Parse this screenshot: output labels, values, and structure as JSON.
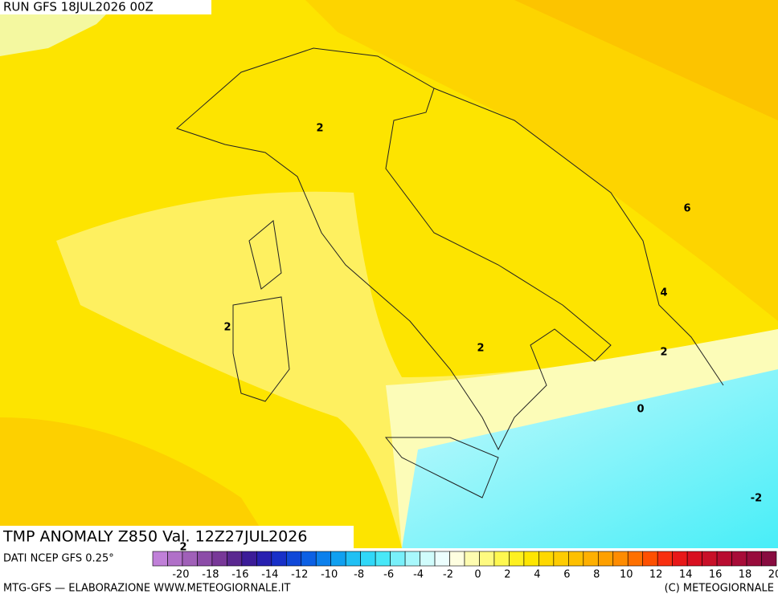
{
  "header": {
    "run": "RUN GFS 18JUL2026 00Z"
  },
  "map": {
    "title": "TMP ANOMALY Z850 Val. 12Z27JUL2026",
    "contour_labels": [
      2,
      2,
      2,
      2,
      2,
      6,
      4,
      0,
      -2
    ]
  },
  "source": "DATI NCEP GFS 0.25°",
  "colorbar": {
    "colors": [
      "#c080d8",
      "#b070c8",
      "#a060b8",
      "#8c4ca8",
      "#783898",
      "#5a2890",
      "#3c1c98",
      "#2820b0",
      "#1830c8",
      "#1048d8",
      "#0c60e4",
      "#0c80ec",
      "#10a0f0",
      "#20c0f4",
      "#30d8f8",
      "#48e8f8",
      "#78f0fa",
      "#a8f8fc",
      "#d0fcfc",
      "#ecfefe",
      "#fefee0",
      "#fefcb0",
      "#fefa80",
      "#fef850",
      "#fef020",
      "#fee600",
      "#fed800",
      "#fecc00",
      "#fec000",
      "#feb000",
      "#fea000",
      "#fe8c00",
      "#fe7000",
      "#fe5000",
      "#f83010",
      "#e81818",
      "#d81020",
      "#c81028",
      "#b80c30",
      "#a80c38",
      "#980c3c",
      "#880c40"
    ],
    "labels": [
      -20,
      -18,
      -16,
      -14,
      -12,
      -10,
      -8,
      -6,
      -4,
      -2,
      0,
      2,
      4,
      6,
      8,
      10,
      12,
      14,
      16,
      18,
      20
    ]
  },
  "footer": {
    "left": "MTG-GFS — ELABORAZIONE WWW.METEOGIORNALE.IT",
    "right": "(C) METEOGIORNALE"
  }
}
